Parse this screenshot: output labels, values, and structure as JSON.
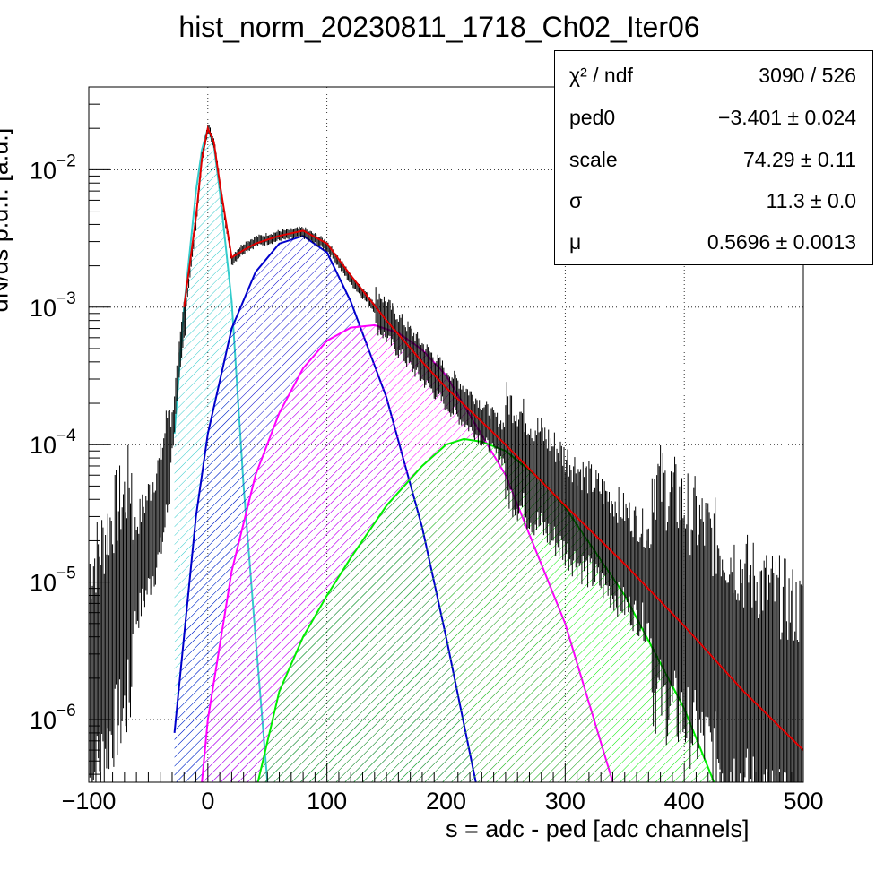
{
  "title": "hist_norm_20230811_1718_Ch02_Iter06",
  "stats_box": {
    "rows": [
      {
        "name": "χ² / ndf",
        "value": "3090 / 526"
      },
      {
        "name": "ped0",
        "value": "−3.401 ± 0.024"
      },
      {
        "name": "scale",
        "value": "74.29 ± 0.11"
      },
      {
        "name": "σ",
        "value": "11.3 ± 0.0"
      },
      {
        "name": "μ",
        "value": "0.5696 ± 0.0013"
      }
    ]
  },
  "chart_data": {
    "type": "line",
    "title": "hist_norm_20230811_1718_Ch02_Iter06",
    "xlabel": "s = adc - ped [adc channels]",
    "ylabel": "dN/ds p.d.f. [a.u.]",
    "xlim": [
      -100,
      500
    ],
    "ylim": [
      3.5e-07,
      0.04
    ],
    "yscale": "log",
    "grid": true,
    "x_ticks": [
      -100,
      0,
      100,
      200,
      300,
      400,
      500
    ],
    "x_tick_labels": [
      "−100",
      "0",
      "100",
      "200",
      "300",
      "400",
      "500"
    ],
    "y_ticks": [
      1e-06,
      1e-05,
      0.0001,
      0.001,
      0.01
    ],
    "y_tick_labels": [
      {
        "base": "10",
        "exp": "−6"
      },
      {
        "base": "10",
        "exp": "−5"
      },
      {
        "base": "10",
        "exp": "−4"
      },
      {
        "base": "10",
        "exp": "−3"
      },
      {
        "base": "10",
        "exp": "−2"
      }
    ],
    "series": [
      {
        "color": "#000000",
        "style": "histogram-errorbars",
        "x": [
          -100,
          -90,
          -80,
          -70,
          -60,
          -50,
          -40,
          -30,
          -20,
          -10,
          -5,
          0,
          5,
          10,
          20,
          30,
          40,
          60,
          80,
          100,
          120,
          150,
          180,
          200,
          250,
          300,
          350,
          400,
          450,
          500
        ],
        "y": [
          2e-06,
          3e-06,
          5e-06,
          7e-06,
          1.2e-05,
          2e-05,
          3.5e-05,
          0.00012,
          0.0008,
          0.004,
          0.012,
          0.02,
          0.016,
          0.008,
          0.0022,
          0.0027,
          0.003,
          0.0033,
          0.0035,
          0.0028,
          0.0016,
          0.0008,
          0.0004,
          0.00026,
          0.0001,
          3.7e-05,
          1.5e-05,
          6e-06,
          2e-06,
          1e-06
        ]
      },
      {
        "color": "#e00000",
        "style": "line",
        "x": [
          -20,
          -10,
          -5,
          0,
          5,
          10,
          20,
          30,
          40,
          60,
          80,
          100,
          120,
          150,
          180,
          200,
          250,
          300,
          350,
          400,
          450,
          500
        ],
        "y": [
          0.001,
          0.0045,
          0.012,
          0.02,
          0.016,
          0.008,
          0.0023,
          0.0026,
          0.0029,
          0.0033,
          0.0036,
          0.0029,
          0.0017,
          0.0008,
          0.0004,
          0.00026,
          0.0001,
          3.6e-05,
          1.35e-05,
          4.8e-06,
          1.6e-06,
          6e-07
        ]
      },
      {
        "color": "#33cccc",
        "style": "filled-gaussian",
        "x": [
          -28,
          -20,
          -10,
          -5,
          0,
          5,
          10,
          20,
          30,
          40,
          50
        ],
        "y": [
          0.00012,
          0.001,
          0.007,
          0.014,
          0.02,
          0.015,
          0.007,
          0.0011,
          5e-05,
          4e-06,
          3.5e-07
        ]
      },
      {
        "color": "#0000cc",
        "style": "filled-gaussian",
        "x": [
          -28,
          -10,
          0,
          20,
          40,
          60,
          80,
          100,
          120,
          150,
          180,
          200,
          225
        ],
        "y": [
          8e-07,
          3e-05,
          0.00012,
          0.0007,
          0.0018,
          0.0029,
          0.0033,
          0.0025,
          0.0011,
          0.00022,
          2.5e-05,
          4e-06,
          3.5e-07
        ]
      },
      {
        "color": "#ff00ff",
        "style": "filled-gaussian",
        "x": [
          -5,
          0,
          20,
          40,
          60,
          80,
          100,
          120,
          140,
          160,
          180,
          200,
          250,
          300,
          340
        ],
        "y": [
          3.5e-07,
          1e-06,
          1.2e-05,
          6e-05,
          0.00017,
          0.00036,
          0.00057,
          0.00071,
          0.00074,
          0.00065,
          0.00049,
          0.00032,
          6e-05,
          5e-06,
          3.5e-07
        ]
      },
      {
        "color": "#00ee00",
        "style": "filled-gaussian",
        "x": [
          42,
          60,
          80,
          100,
          120,
          150,
          180,
          200,
          215,
          230,
          250,
          280,
          300,
          350,
          400,
          425
        ],
        "y": [
          3.5e-07,
          1.6e-06,
          4e-06,
          8e-06,
          1.5e-05,
          3.6e-05,
          7e-05,
          0.0001,
          0.00011,
          0.000105,
          9e-05,
          5.5e-05,
          3.5e-05,
          8e-06,
          1.2e-06,
          3.5e-07
        ]
      }
    ]
  }
}
